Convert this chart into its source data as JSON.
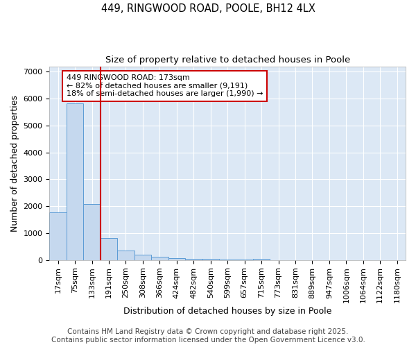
{
  "title": "449, RINGWOOD ROAD, POOLE, BH12 4LX",
  "subtitle": "Size of property relative to detached houses in Poole",
  "xlabel": "Distribution of detached houses by size in Poole",
  "ylabel": "Number of detached properties",
  "categories": [
    "17sqm",
    "75sqm",
    "133sqm",
    "191sqm",
    "250sqm",
    "308sqm",
    "366sqm",
    "424sqm",
    "482sqm",
    "540sqm",
    "599sqm",
    "657sqm",
    "715sqm",
    "773sqm",
    "831sqm",
    "889sqm",
    "947sqm",
    "1006sqm",
    "1064sqm",
    "1122sqm",
    "1180sqm"
  ],
  "values": [
    1780,
    5820,
    2090,
    830,
    360,
    210,
    110,
    80,
    55,
    45,
    30,
    20,
    50,
    0,
    0,
    0,
    0,
    0,
    0,
    0,
    0
  ],
  "bar_color": "#c5d8ee",
  "bar_edge_color": "#5b9bd5",
  "vline_x_index": 3,
  "vline_color": "#cc0000",
  "annotation_text": "449 RINGWOOD ROAD: 173sqm\n← 82% of detached houses are smaller (9,191)\n18% of semi-detached houses are larger (1,990) →",
  "annotation_box_color": "#ffffff",
  "annotation_box_edge_color": "#cc0000",
  "footer_line1": "Contains HM Land Registry data © Crown copyright and database right 2025.",
  "footer_line2": "Contains public sector information licensed under the Open Government Licence v3.0.",
  "ylim": [
    0,
    7200
  ],
  "background_color": "#ffffff",
  "plot_background_color": "#dce8f5",
  "grid_color": "#ffffff",
  "title_fontsize": 10.5,
  "subtitle_fontsize": 9.5,
  "axis_label_fontsize": 9,
  "tick_fontsize": 8,
  "annotation_fontsize": 8,
  "footer_fontsize": 7.5
}
